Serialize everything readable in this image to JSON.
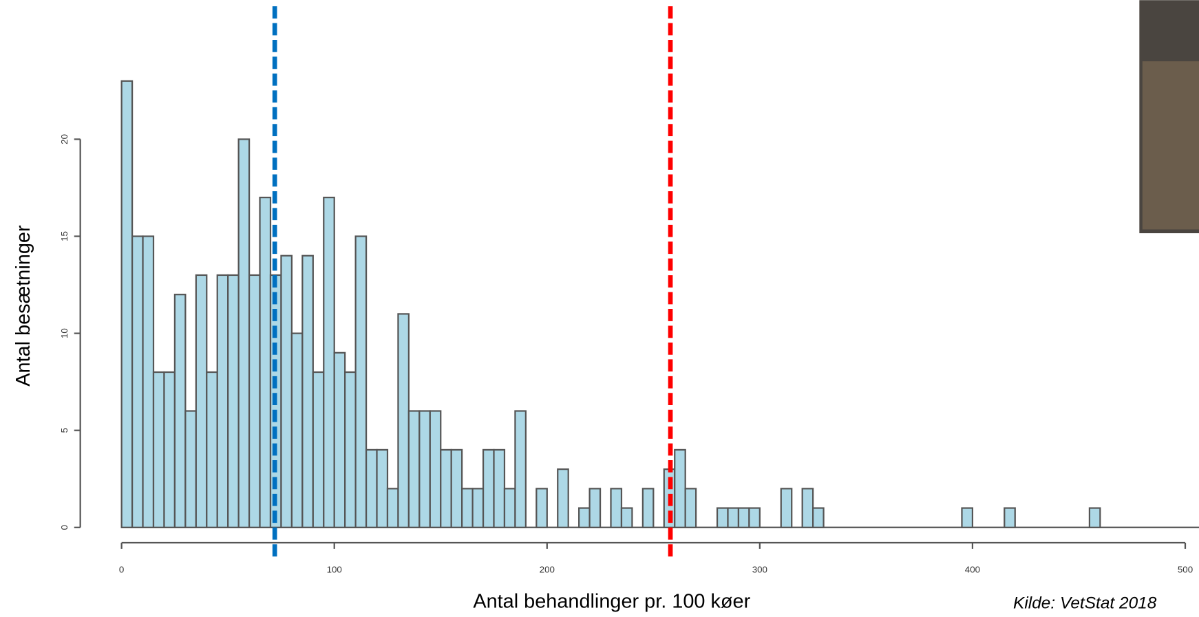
{
  "chart_data": {
    "type": "histogram",
    "x_label": "Antal behandlinger pr. 100 køer",
    "y_label": "Antal besætninger",
    "source": "Kilde: VetStat 2018",
    "bins": [
      0,
      5,
      10,
      15,
      20,
      25,
      30,
      35,
      40,
      45,
      50,
      55,
      60,
      65,
      70,
      75,
      80,
      85,
      90,
      95,
      100,
      105,
      110,
      115,
      120,
      125,
      130,
      135,
      140,
      145,
      150,
      155,
      160,
      165,
      170,
      175,
      180,
      185,
      190,
      195,
      200,
      205,
      210,
      215,
      220,
      225,
      230,
      235,
      240,
      245,
      250,
      255,
      260,
      265,
      270,
      275,
      280,
      285,
      290,
      295,
      300,
      305,
      310,
      315,
      320,
      325,
      330,
      335,
      340,
      345,
      350,
      355,
      360,
      365,
      370,
      375,
      380,
      385,
      390,
      395,
      400,
      405,
      410,
      415,
      420,
      425,
      430,
      435,
      440,
      445,
      450,
      455,
      460,
      465,
      470,
      475,
      480,
      485,
      490,
      495,
      500
    ],
    "values": [
      23,
      15,
      15,
      8,
      8,
      12,
      6,
      13,
      8,
      13,
      13,
      20,
      13,
      17,
      13,
      14,
      10,
      14,
      8,
      17,
      9,
      8,
      15,
      4,
      4,
      2,
      11,
      6,
      6,
      6,
      4,
      4,
      2,
      2,
      4,
      4,
      2,
      6,
      0,
      2,
      0,
      3,
      0,
      1,
      2,
      0,
      2,
      1,
      0,
      2,
      0,
      3,
      4,
      2,
      0,
      0,
      1,
      1,
      1,
      1,
      0,
      0,
      2,
      0,
      2,
      1,
      0,
      0,
      0,
      0,
      0,
      0,
      0,
      0,
      0,
      0,
      0,
      0,
      0,
      1,
      0,
      0,
      0,
      1,
      0,
      0,
      0,
      0,
      0,
      0,
      0,
      1,
      0,
      0,
      0,
      0,
      0,
      0,
      0,
      0
    ],
    "color": "#add8e6",
    "reference_lines": [
      {
        "value": 72,
        "color": "#0070c0"
      },
      {
        "value": 258,
        "color": "#ff0000"
      }
    ],
    "xlim": [
      0,
      500
    ],
    "xticks": [
      0,
      100,
      200,
      300,
      400,
      500
    ],
    "ylim": [
      0,
      25
    ],
    "yticks": [
      0,
      5,
      10,
      15,
      20
    ]
  }
}
